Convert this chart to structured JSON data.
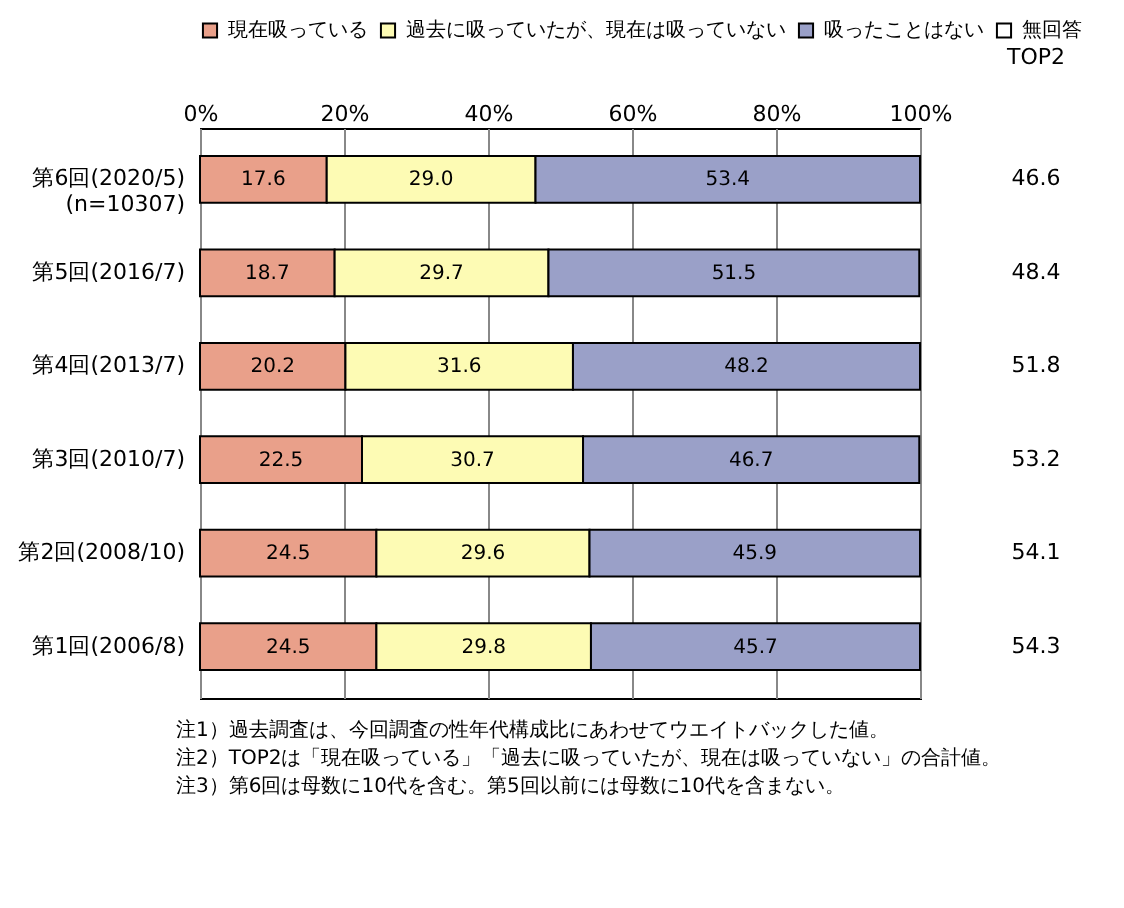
{
  "chart_data": {
    "type": "bar",
    "orientation": "horizontal",
    "stacked": true,
    "grid": "x",
    "legend": "top",
    "categories": [
      "第6回(2020/5)\n(n=10307)",
      "第5回(2016/7)",
      "第4回(2013/7)",
      "第3回(2010/7)",
      "第2回(2008/10)",
      "第1回(2006/8)"
    ],
    "series": [
      {
        "name": "現在吸っている",
        "color": "#e9a08a",
        "values": [
          17.6,
          18.7,
          20.2,
          22.5,
          24.5,
          24.5
        ],
        "value_labels": [
          "17.6",
          "18.7",
          "20.2",
          "22.5",
          "24.5",
          "24.5"
        ]
      },
      {
        "name": "過去に吸っていたが、現在は吸っていない",
        "color": "#fdfbb4",
        "values": [
          29.0,
          29.7,
          31.6,
          30.7,
          29.6,
          29.8
        ],
        "value_labels": [
          "29.0",
          "29.7",
          "31.6",
          "30.7",
          "29.6",
          "29.8"
        ]
      },
      {
        "name": "吸ったことはない",
        "color": "#9aa0c8",
        "values": [
          53.4,
          51.5,
          48.2,
          46.7,
          45.9,
          45.7
        ],
        "value_labels": [
          "53.4",
          "51.5",
          "48.2",
          "46.7",
          "45.9",
          "45.7"
        ]
      },
      {
        "name": "無回答",
        "color": "#ffffff",
        "values": [
          null,
          null,
          null,
          null,
          null,
          null
        ]
      }
    ],
    "xlim": [
      0,
      100
    ],
    "xticks": [
      {
        "value": 0,
        "label": "0%"
      },
      {
        "value": 20,
        "label": "20%"
      },
      {
        "value": 40,
        "label": "40%"
      },
      {
        "value": 60,
        "label": "60%"
      },
      {
        "value": 80,
        "label": "80%"
      },
      {
        "value": 100,
        "label": "100%"
      }
    ],
    "annotations": [
      "TOP2",
      "46.6",
      "48.4",
      "51.8",
      "53.2",
      "54.1",
      "54.3",
      "注1）過去調査は、今回調査の性年代構成比にあわせてウエイトバックした値。",
      "注2）TOP2は「現在吸っている」「過去に吸っていたが、現在は吸っていない」の合計値。",
      "注3）第6回は母数に10代を含む。第5回以前には母数に10代を含まない。"
    ]
  }
}
